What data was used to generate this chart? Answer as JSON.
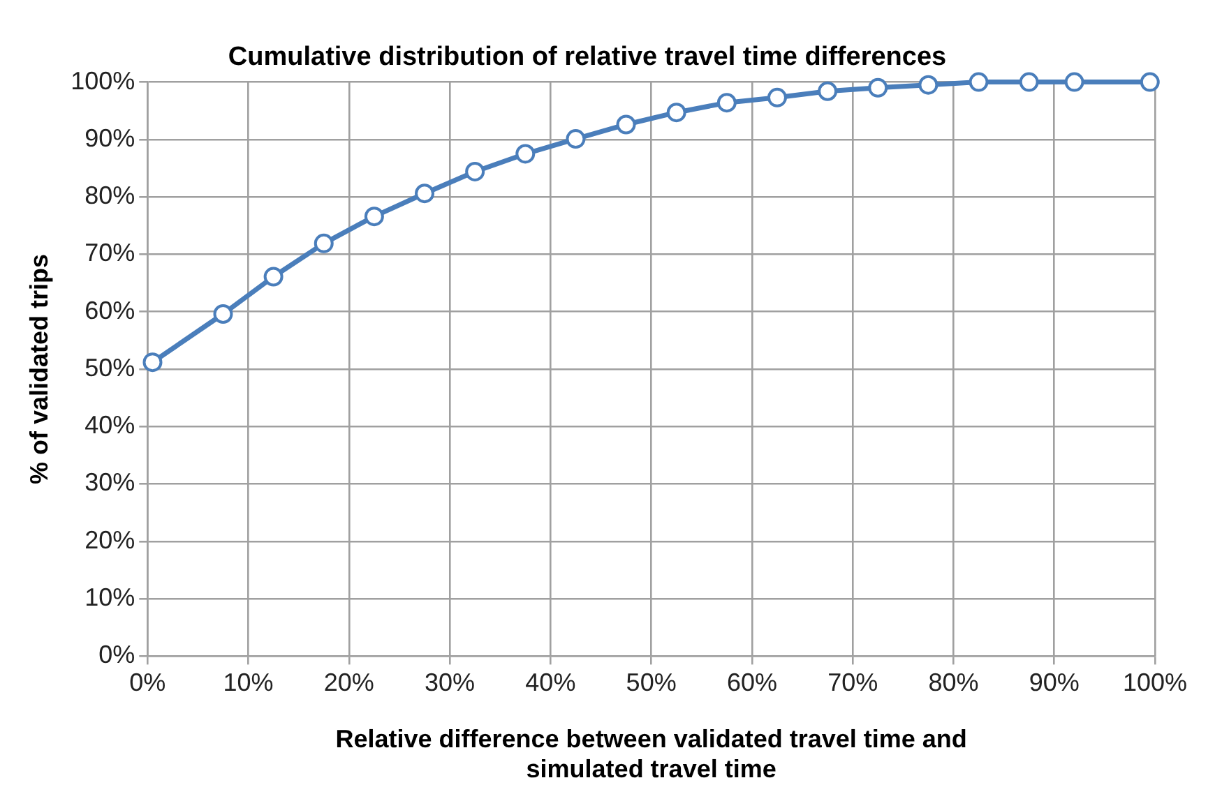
{
  "chart_data": {
    "type": "line",
    "title": "Cumulative distribution of relative travel time differences",
    "xlabel": "Relative difference between validated travel time and simulated travel time",
    "ylabel": "% of validated trips",
    "x": [
      0.5,
      7.5,
      12.5,
      17.5,
      22.5,
      27.5,
      32.5,
      37.5,
      42.5,
      47.5,
      52.5,
      57.5,
      62.5,
      67.5,
      72.5,
      77.5,
      82.5,
      87.5,
      92,
      99.5
    ],
    "series": [
      {
        "color": "#4a7ebb",
        "values": [
          51.2,
          59.6,
          66.1,
          71.9,
          76.6,
          80.6,
          84.4,
          87.5,
          90.1,
          92.6,
          94.7,
          96.4,
          97.3,
          98.4,
          99.0,
          99.5,
          100,
          100,
          100,
          100
        ]
      }
    ],
    "xlim": [
      0,
      100
    ],
    "xticks": [
      {
        "value": 0,
        "label": "0%"
      },
      {
        "value": 10,
        "label": "10%"
      },
      {
        "value": 20,
        "label": "20%"
      },
      {
        "value": 30,
        "label": "30%"
      },
      {
        "value": 40,
        "label": "40%"
      },
      {
        "value": 50,
        "label": "50%"
      },
      {
        "value": 60,
        "label": "60%"
      },
      {
        "value": 70,
        "label": "70%"
      },
      {
        "value": 80,
        "label": "80%"
      },
      {
        "value": 90,
        "label": "90%"
      },
      {
        "value": 100,
        "label": "100%"
      }
    ],
    "ylim": [
      0,
      100
    ],
    "yticks": [
      {
        "value": 0,
        "label": "0%"
      },
      {
        "value": 10,
        "label": "10%"
      },
      {
        "value": 20,
        "label": "20%"
      },
      {
        "value": 30,
        "label": "30%"
      },
      {
        "value": 40,
        "label": "40%"
      },
      {
        "value": 50,
        "label": "50%"
      },
      {
        "value": 60,
        "label": "60%"
      },
      {
        "value": 70,
        "label": "70%"
      },
      {
        "value": 80,
        "label": "80%"
      },
      {
        "value": 90,
        "label": "90%"
      },
      {
        "value": 100,
        "label": "100%"
      }
    ],
    "grid": true,
    "legend": false,
    "marker": "circle",
    "line_style": "solid"
  }
}
